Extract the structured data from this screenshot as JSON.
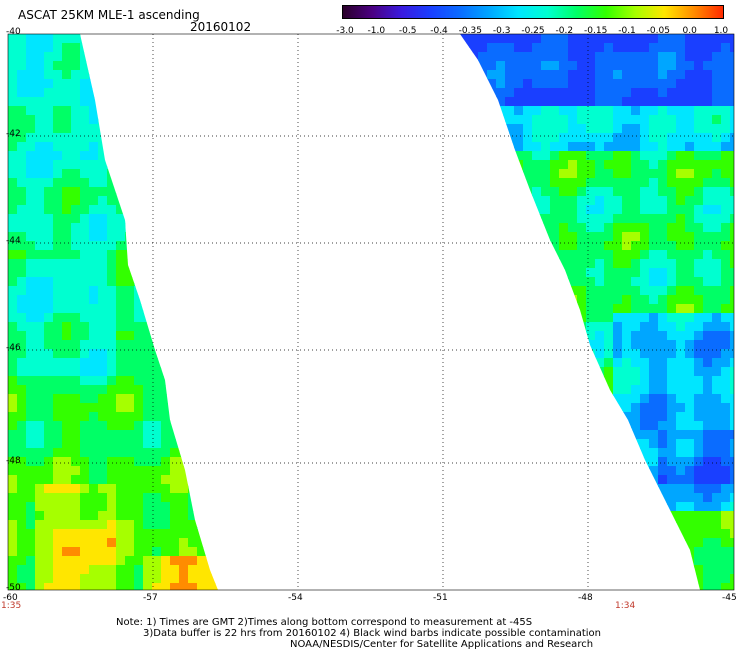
{
  "header": {
    "title": "ASCAT 25KM MLE-1 ascending",
    "date": "20160102"
  },
  "colorbar": {
    "labels": [
      "-3.0",
      "-1.0",
      "-0.5",
      "-0.4",
      "-0.35",
      "-0.3",
      "-0.25",
      "-0.2",
      "-0.15",
      "-0.1",
      "-0.05",
      "0.0",
      "1.0"
    ],
    "colors": [
      "#2a002a",
      "#4b0082",
      "#3a1adf",
      "#1a3fff",
      "#0a6cff",
      "#00a6ff",
      "#00e6ff",
      "#00ffd0",
      "#00ff66",
      "#33ff00",
      "#a6ff00",
      "#ffe600",
      "#ff8c00",
      "#ff2a00"
    ]
  },
  "map": {
    "lon_labels": [
      "-60",
      "-57",
      "-54",
      "-51",
      "-48",
      "-45"
    ],
    "lat_labels": [
      "-40",
      "-42",
      "-44",
      "-46",
      "-48",
      "-50"
    ],
    "swath_times": {
      "left": "1:35",
      "right": "1:34"
    }
  },
  "footer": {
    "line1": "Note: 1) Times are GMT 2)Times along bottom correspond to measurement at -45S",
    "line2": "3)Data buffer is 22 hrs from 20160102 4) Black wind barbs indicate possible contamination",
    "line3": "NOAA/NESDIS/Center for Satellite Applications and Research"
  }
}
